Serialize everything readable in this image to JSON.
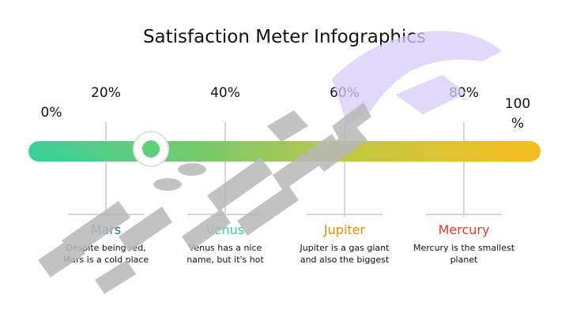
{
  "title": "Satisfaction Meter Infographics",
  "scale": [
    "0%",
    "20%",
    "40%",
    "60%",
    "80%",
    "100\n%"
  ],
  "meter": {
    "value_percent": 26
  },
  "planets": [
    {
      "name": "Mars",
      "color": "#1f6fa8",
      "description": "Despite being red, Mars is a cold place"
    },
    {
      "name": "Venus",
      "color": "#3cc8a0",
      "description": "Venus has a nice name, but it's hot"
    },
    {
      "name": "Jupiter",
      "color": "#f08a00",
      "description": "Jupiter is a gas giant and also the biggest"
    },
    {
      "name": "Mercury",
      "color": "#e23a2c",
      "description": "Mercury is the smallest planet"
    }
  ],
  "colors": {
    "track_start": "#3ad09a",
    "track_end": "#f8bd1d",
    "knob": "#5fcf7c",
    "watermark": "#b8b8b8",
    "watermark_accent": "#d9ccf7"
  }
}
